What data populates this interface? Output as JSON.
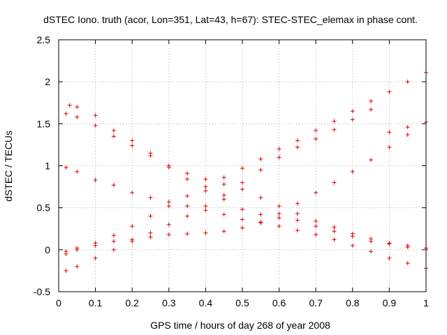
{
  "chart_data": {
    "type": "scatter",
    "title": "dSTEC Iono. truth (acor, Lon=351, Lat=43, h=67): STEC-STEC_elemax in phase cont.",
    "xlabel": "GPS time / hours of day 268 of year 2008",
    "ylabel": "dSTEC  / TECUs",
    "xlim": [
      0,
      1
    ],
    "ylim": [
      -0.5,
      2.5
    ],
    "xticks": [
      "0",
      "0.1",
      "0.2",
      "0.3",
      "0.4",
      "0.5",
      "0.6",
      "0.7",
      "0.8",
      "0.9",
      "1"
    ],
    "yticks": [
      "-0.5",
      "0",
      "0.5",
      "1",
      "1.5",
      "2",
      "2.5"
    ],
    "grid": true,
    "marker": "+",
    "color": "#e00000",
    "series": [
      {
        "x": [
          0.02,
          0.05,
          0.1,
          0.15,
          0.2,
          0.25,
          0.3,
          0.35,
          0.4,
          0.45,
          0.5,
          0.55,
          0.6,
          0.65,
          0.7,
          0.75,
          0.8,
          0.85,
          0.9,
          0.95,
          1.0
        ],
        "y": [
          -0.02,
          0.02,
          0.08,
          0.17,
          0.28,
          0.4,
          0.52,
          0.64,
          0.75,
          0.86,
          0.97,
          1.08,
          1.2,
          1.3,
          1.42,
          1.53,
          1.65,
          1.77,
          1.88,
          2.0,
          2.11
        ]
      },
      {
        "x": [
          0.02,
          0.05,
          0.1,
          0.15,
          0.2,
          0.25,
          0.3,
          0.35,
          0.4,
          0.45,
          0.5,
          0.55,
          0.6,
          0.65,
          0.7,
          0.75,
          0.8,
          0.85,
          0.9,
          0.95,
          1.0
        ],
        "y": [
          -0.25,
          -0.2,
          -0.1,
          0.0,
          0.1,
          0.2,
          0.3,
          0.4,
          0.52,
          0.65,
          0.8,
          0.95,
          1.1,
          1.22,
          1.32,
          1.43,
          1.55,
          1.67,
          1.4,
          1.46,
          1.52
        ]
      },
      {
        "x": [
          0.02,
          0.05,
          0.1,
          0.15,
          0.2,
          0.25,
          0.3,
          0.35,
          0.4,
          0.45,
          0.5,
          0.55,
          0.6,
          0.65,
          0.7,
          0.75,
          0.8,
          0.85,
          0.9,
          0.95,
          1.0
        ],
        "y": [
          -0.05,
          0.0,
          0.05,
          0.1,
          0.12,
          0.15,
          0.18,
          0.19,
          0.2,
          0.22,
          0.26,
          0.33,
          0.43,
          0.55,
          0.68,
          0.8,
          0.93,
          1.07,
          1.22,
          1.37,
          1.52
        ]
      },
      {
        "x": [
          0.02,
          0.05,
          0.1,
          0.15,
          0.2,
          0.25,
          0.3,
          0.35,
          0.4,
          0.45,
          0.5,
          0.55,
          0.6,
          0.65,
          0.7,
          0.75,
          0.8,
          0.85,
          0.9,
          0.95,
          1.0
        ],
        "y": [
          0.98,
          0.93,
          0.83,
          0.77,
          0.68,
          0.62,
          0.57,
          0.52,
          0.47,
          0.42,
          0.36,
          0.32,
          0.28,
          0.23,
          0.18,
          0.12,
          0.05,
          -0.02,
          -0.1,
          -0.16,
          -0.22
        ]
      },
      {
        "x": [
          0.02,
          0.05,
          0.1,
          0.15,
          0.2,
          0.25,
          0.3,
          0.35,
          0.4,
          0.45,
          0.5,
          0.55,
          0.6,
          0.65,
          0.7,
          0.75,
          0.8,
          0.85,
          0.9,
          0.95,
          1.0
        ],
        "y": [
          1.62,
          1.58,
          1.48,
          1.35,
          1.24,
          1.12,
          1.0,
          0.91,
          0.84,
          0.78,
          0.72,
          0.62,
          0.52,
          0.43,
          0.34,
          0.27,
          0.19,
          0.13,
          0.08,
          0.03,
          0.0
        ]
      },
      {
        "x": [
          0.03,
          0.05,
          0.1,
          0.15,
          0.2,
          0.25,
          0.3,
          0.35,
          0.4,
          0.45,
          0.5,
          0.55,
          0.6,
          0.65,
          0.7,
          0.75,
          0.8,
          0.85,
          0.9,
          0.95,
          1.0
        ],
        "y": [
          1.72,
          1.7,
          1.6,
          1.42,
          1.3,
          1.15,
          0.98,
          0.84,
          0.7,
          0.6,
          0.48,
          0.42,
          0.38,
          0.35,
          0.28,
          0.22,
          0.16,
          0.1,
          0.07,
          0.05,
          0.02
        ]
      }
    ]
  }
}
